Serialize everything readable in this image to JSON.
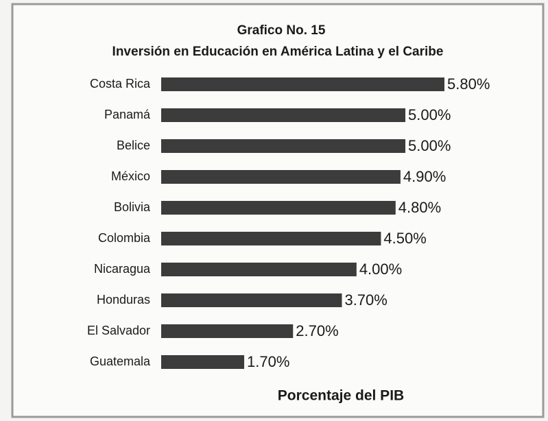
{
  "chart_data": {
    "type": "bar",
    "orientation": "horizontal",
    "title": "Grafico No. 15",
    "subtitle": "Inversión en Educación en América Latina y el Caribe",
    "x_label": "Porcentaje del PIB",
    "categories": [
      "Costa Rica",
      "Panamá",
      "Belice",
      "México",
      "Bolivia",
      "Colombia",
      "Nicaragua",
      "Honduras",
      "El Salvador",
      "Guatemala"
    ],
    "values": [
      5.8,
      5.0,
      5.0,
      4.9,
      4.8,
      4.5,
      4.0,
      3.7,
      2.7,
      1.7
    ],
    "value_labels": [
      "5.80%",
      "5.00%",
      "5.00%",
      "4.90%",
      "4.80%",
      "4.50%",
      "4.00%",
      "3.70%",
      "2.70%",
      "1.70%"
    ],
    "color": "#3c3c3c"
  }
}
